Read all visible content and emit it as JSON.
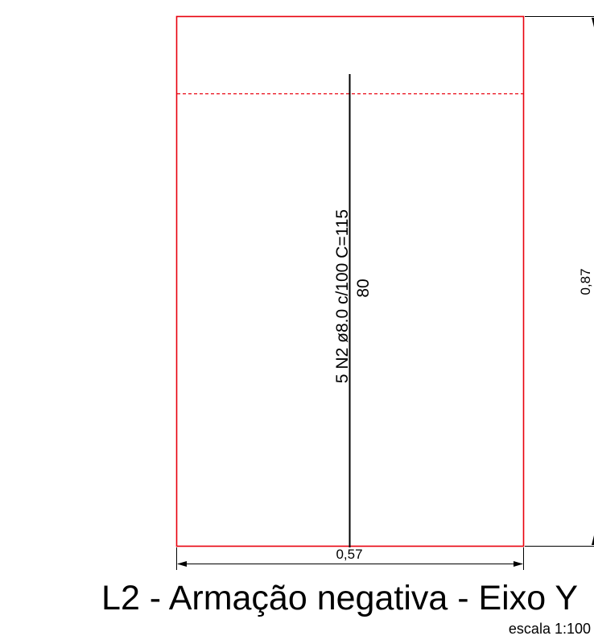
{
  "drawing": {
    "rebar_label": "5 N2 ø8.0 c/100  C=115",
    "rebar_length": "80",
    "width_dim": "0,57",
    "height_dim": "0,87",
    "title": "L2 - Armação negativa - Eixo Y",
    "scale": "escala 1:100"
  },
  "colors": {
    "slab_outline": "#e8000d",
    "rebar": "#000000",
    "dimension": "#000000"
  }
}
